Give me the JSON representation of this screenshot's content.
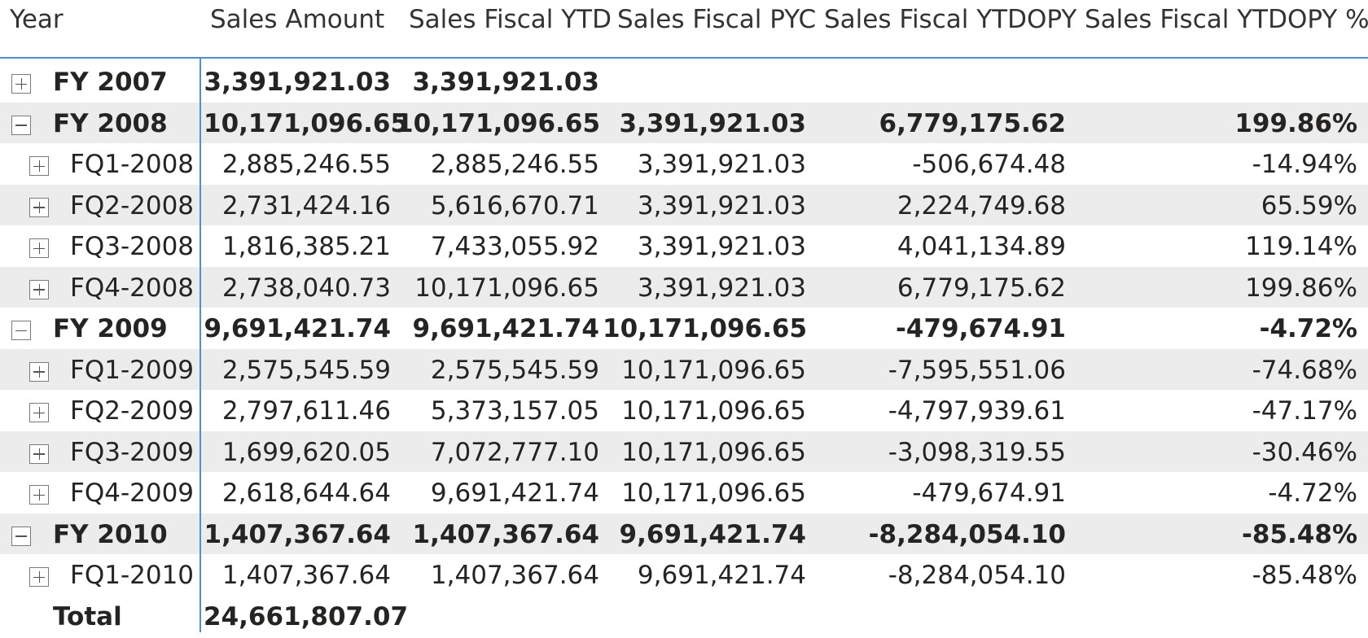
{
  "columns": [
    "Year",
    "Sales Amount",
    "Sales Fiscal YTD",
    "Sales Fiscal PYC",
    "Sales Fiscal YTDOPY",
    "Sales Fiscal YTDOPY %"
  ],
  "rows": [
    {
      "label": "FY 2007",
      "level": 0,
      "state": "collapsed",
      "bold": true,
      "shaded": false,
      "values": [
        "3,391,921.03",
        "3,391,921.03",
        "",
        "",
        ""
      ]
    },
    {
      "label": "FY 2008",
      "level": 0,
      "state": "expanded",
      "bold": true,
      "shaded": true,
      "values": [
        "10,171,096.65",
        "10,171,096.65",
        "3,391,921.03",
        "6,779,175.62",
        "199.86%"
      ]
    },
    {
      "label": "FQ1-2008",
      "level": 1,
      "state": "collapsed",
      "bold": false,
      "shaded": false,
      "values": [
        "2,885,246.55",
        "2,885,246.55",
        "3,391,921.03",
        "-506,674.48",
        "-14.94%"
      ]
    },
    {
      "label": "FQ2-2008",
      "level": 1,
      "state": "collapsed",
      "bold": false,
      "shaded": true,
      "values": [
        "2,731,424.16",
        "5,616,670.71",
        "3,391,921.03",
        "2,224,749.68",
        "65.59%"
      ]
    },
    {
      "label": "FQ3-2008",
      "level": 1,
      "state": "collapsed",
      "bold": false,
      "shaded": false,
      "values": [
        "1,816,385.21",
        "7,433,055.92",
        "3,391,921.03",
        "4,041,134.89",
        "119.14%"
      ]
    },
    {
      "label": "FQ4-2008",
      "level": 1,
      "state": "collapsed",
      "bold": false,
      "shaded": true,
      "values": [
        "2,738,040.73",
        "10,171,096.65",
        "3,391,921.03",
        "6,779,175.62",
        "199.86%"
      ]
    },
    {
      "label": "FY 2009",
      "level": 0,
      "state": "expanded",
      "bold": true,
      "shaded": false,
      "values": [
        "9,691,421.74",
        "9,691,421.74",
        "10,171,096.65",
        "-479,674.91",
        "-4.72%"
      ]
    },
    {
      "label": "FQ1-2009",
      "level": 1,
      "state": "collapsed",
      "bold": false,
      "shaded": true,
      "values": [
        "2,575,545.59",
        "2,575,545.59",
        "10,171,096.65",
        "-7,595,551.06",
        "-74.68%"
      ]
    },
    {
      "label": "FQ2-2009",
      "level": 1,
      "state": "collapsed",
      "bold": false,
      "shaded": false,
      "values": [
        "2,797,611.46",
        "5,373,157.05",
        "10,171,096.65",
        "-4,797,939.61",
        "-47.17%"
      ]
    },
    {
      "label": "FQ3-2009",
      "level": 1,
      "state": "collapsed",
      "bold": false,
      "shaded": true,
      "values": [
        "1,699,620.05",
        "7,072,777.10",
        "10,171,096.65",
        "-3,098,319.55",
        "-30.46%"
      ]
    },
    {
      "label": "FQ4-2009",
      "level": 1,
      "state": "collapsed",
      "bold": false,
      "shaded": false,
      "values": [
        "2,618,644.64",
        "9,691,421.74",
        "10,171,096.65",
        "-479,674.91",
        "-4.72%"
      ]
    },
    {
      "label": "FY 2010",
      "level": 0,
      "state": "expanded",
      "bold": true,
      "shaded": true,
      "values": [
        "1,407,367.64",
        "1,407,367.64",
        "9,691,421.74",
        "-8,284,054.10",
        "-85.48%"
      ]
    },
    {
      "label": "FQ1-2010",
      "level": 1,
      "state": "collapsed",
      "bold": false,
      "shaded": false,
      "values": [
        "1,407,367.64",
        "1,407,367.64",
        "9,691,421.74",
        "-8,284,054.10",
        "-85.48%"
      ]
    },
    {
      "label": "Total",
      "level": 0,
      "state": "none",
      "bold": true,
      "shaded": false,
      "values": [
        "24,661,807.07",
        "",
        "",
        "",
        ""
      ]
    }
  ],
  "colors": {
    "accent": "#4a90e2",
    "shaded": "#ececec",
    "text": "#252423"
  }
}
